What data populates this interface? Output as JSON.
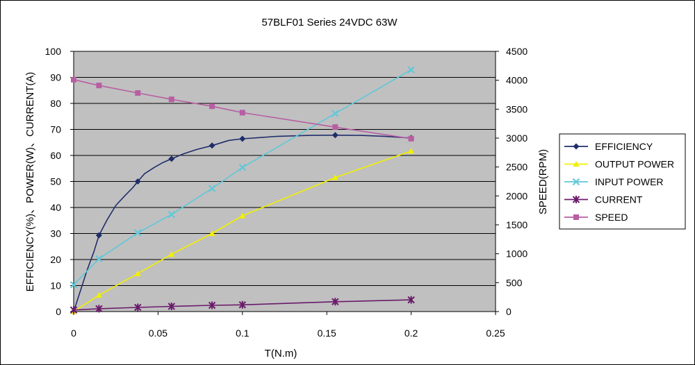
{
  "chart_data": {
    "type": "line",
    "title": "57BLF01 Series 24VDC 63W",
    "xlabel": "T(N.m)",
    "ylabel_left": "EFFICIENCY(%)、POWER(W)、CURRENT(A)",
    "ylabel_right": "SPEED(RPM)",
    "xlim": [
      0,
      0.25
    ],
    "ylim_left": [
      0,
      100
    ],
    "ylim_right": [
      0,
      4500
    ],
    "x_ticks": [
      "0",
      "0.05",
      "0.1",
      "0.15",
      "0.2",
      "0.25"
    ],
    "y_left_ticks": [
      "0",
      "10",
      "20",
      "30",
      "40",
      "50",
      "60",
      "70",
      "80",
      "90",
      "100"
    ],
    "y_right_ticks": [
      "0",
      "500",
      "1000",
      "1500",
      "2000",
      "2500",
      "3000",
      "3500",
      "4000",
      "4500"
    ],
    "grid": "horizontal",
    "legend_position": "right",
    "series": [
      {
        "name": "EFFICIENCY",
        "axis": "left",
        "color": "#1f2d6b",
        "marker": "diamond",
        "points": [
          [
            0,
            0
          ],
          [
            0.015,
            29.3
          ],
          [
            0.038,
            50
          ],
          [
            0.058,
            58.7
          ],
          [
            0.082,
            63.8
          ],
          [
            0.1,
            66.4
          ],
          [
            0.155,
            67.8
          ],
          [
            0.2,
            66.7
          ]
        ],
        "curve": [
          [
            0,
            0
          ],
          [
            0.004,
            8
          ],
          [
            0.008,
            16
          ],
          [
            0.012,
            23
          ],
          [
            0.015,
            29.3
          ],
          [
            0.02,
            35.5
          ],
          [
            0.025,
            40.8
          ],
          [
            0.03,
            44.3
          ],
          [
            0.035,
            47.6
          ],
          [
            0.038,
            50
          ],
          [
            0.042,
            53
          ],
          [
            0.048,
            55.5
          ],
          [
            0.053,
            57.3
          ],
          [
            0.058,
            58.7
          ],
          [
            0.065,
            60.6
          ],
          [
            0.073,
            62.3
          ],
          [
            0.082,
            63.8
          ],
          [
            0.092,
            65.8
          ],
          [
            0.1,
            66.4
          ],
          [
            0.12,
            67.3
          ],
          [
            0.14,
            67.7
          ],
          [
            0.155,
            67.8
          ],
          [
            0.17,
            67.7
          ],
          [
            0.185,
            67.3
          ],
          [
            0.2,
            66.7
          ]
        ]
      },
      {
        "name": "OUTPUT POWER",
        "axis": "left",
        "color": "#f0f000",
        "marker": "triangle",
        "points": [
          [
            0,
            0
          ],
          [
            0.015,
            6.3
          ],
          [
            0.038,
            14.6
          ],
          [
            0.058,
            22
          ],
          [
            0.082,
            30
          ],
          [
            0.1,
            36.8
          ],
          [
            0.155,
            51.5
          ],
          [
            0.2,
            61.7
          ]
        ]
      },
      {
        "name": "INPUT POWER",
        "axis": "left",
        "color": "#5ec8d8",
        "marker": "x",
        "points": [
          [
            0,
            10.3
          ],
          [
            0.015,
            20.3
          ],
          [
            0.038,
            30.3
          ],
          [
            0.058,
            37.3
          ],
          [
            0.082,
            47.3
          ],
          [
            0.1,
            55.4
          ],
          [
            0.155,
            76.1
          ],
          [
            0.2,
            92.9
          ]
        ]
      },
      {
        "name": "CURRENT",
        "axis": "left",
        "color": "#6a1a6a",
        "marker": "asterisk",
        "points": [
          [
            0,
            0.6
          ],
          [
            0.015,
            1.1
          ],
          [
            0.038,
            1.6
          ],
          [
            0.058,
            2
          ],
          [
            0.082,
            2.4
          ],
          [
            0.1,
            2.6
          ],
          [
            0.155,
            3.8
          ],
          [
            0.2,
            4.5
          ]
        ]
      },
      {
        "name": "SPEED",
        "axis": "right",
        "color": "#b85ea3",
        "marker": "square",
        "points": [
          [
            0,
            4010
          ],
          [
            0.015,
            3910
          ],
          [
            0.038,
            3780
          ],
          [
            0.058,
            3670
          ],
          [
            0.082,
            3550
          ],
          [
            0.1,
            3440
          ],
          [
            0.155,
            3190
          ],
          [
            0.2,
            2990
          ]
        ]
      }
    ]
  }
}
